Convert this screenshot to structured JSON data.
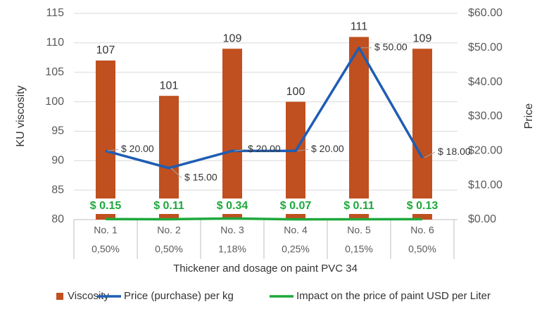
{
  "chart_data": {
    "type": "bar_line",
    "x_label": "Thickener and dosage on paint PVC 34",
    "y_label": "KU viscosity",
    "y2_label": "Price",
    "categories": [
      "No. 1",
      "No. 2",
      "No. 3",
      "No. 4",
      "No. 5",
      "No. 6"
    ],
    "sub_categories": [
      "0,50%",
      "0,50%",
      "1,18%",
      "0,25%",
      "0,15%",
      "0,50%"
    ],
    "ylim": [
      80,
      115
    ],
    "yticks": [
      80,
      85,
      90,
      95,
      100,
      105,
      110,
      115
    ],
    "y2lim": [
      0,
      60
    ],
    "y2ticks": [
      {
        "value": 0,
        "label": "$0.00"
      },
      {
        "value": 10,
        "label": "$10.00"
      },
      {
        "value": 20,
        "label": "$20.00"
      },
      {
        "value": 30,
        "label": "$30.00"
      },
      {
        "value": 40,
        "label": "$40.00"
      },
      {
        "value": 50,
        "label": "$50.00"
      },
      {
        "value": 60,
        "label": "$60.00"
      }
    ],
    "grid": true,
    "legend": "bottom",
    "series": [
      {
        "name": "Viscosity",
        "type": "bar",
        "color": "#c0501f",
        "values": [
          107,
          101,
          109,
          100,
          111,
          109
        ]
      },
      {
        "name": "Price (purchase) per kg",
        "type": "line",
        "axis": "y2",
        "color": "#1f5db3",
        "values": [
          20,
          15,
          20,
          20,
          50,
          18
        ],
        "value_labels": [
          "$ 20.00",
          "$ 15.00",
          "$ 20.00",
          "$ 20.00",
          "$ 50.00",
          "$ 18.00"
        ]
      },
      {
        "name": "Impact on the price of paint USD per Liter",
        "type": "line",
        "axis": "y2",
        "color": "#1ea83c",
        "values": [
          0.15,
          0.11,
          0.34,
          0.07,
          0.11,
          0.13
        ],
        "value_labels": [
          "$ 0.15",
          "$ 0.11",
          "$ 0.34",
          "$ 0.07",
          "$ 0.11",
          "$ 0.13"
        ]
      }
    ]
  }
}
